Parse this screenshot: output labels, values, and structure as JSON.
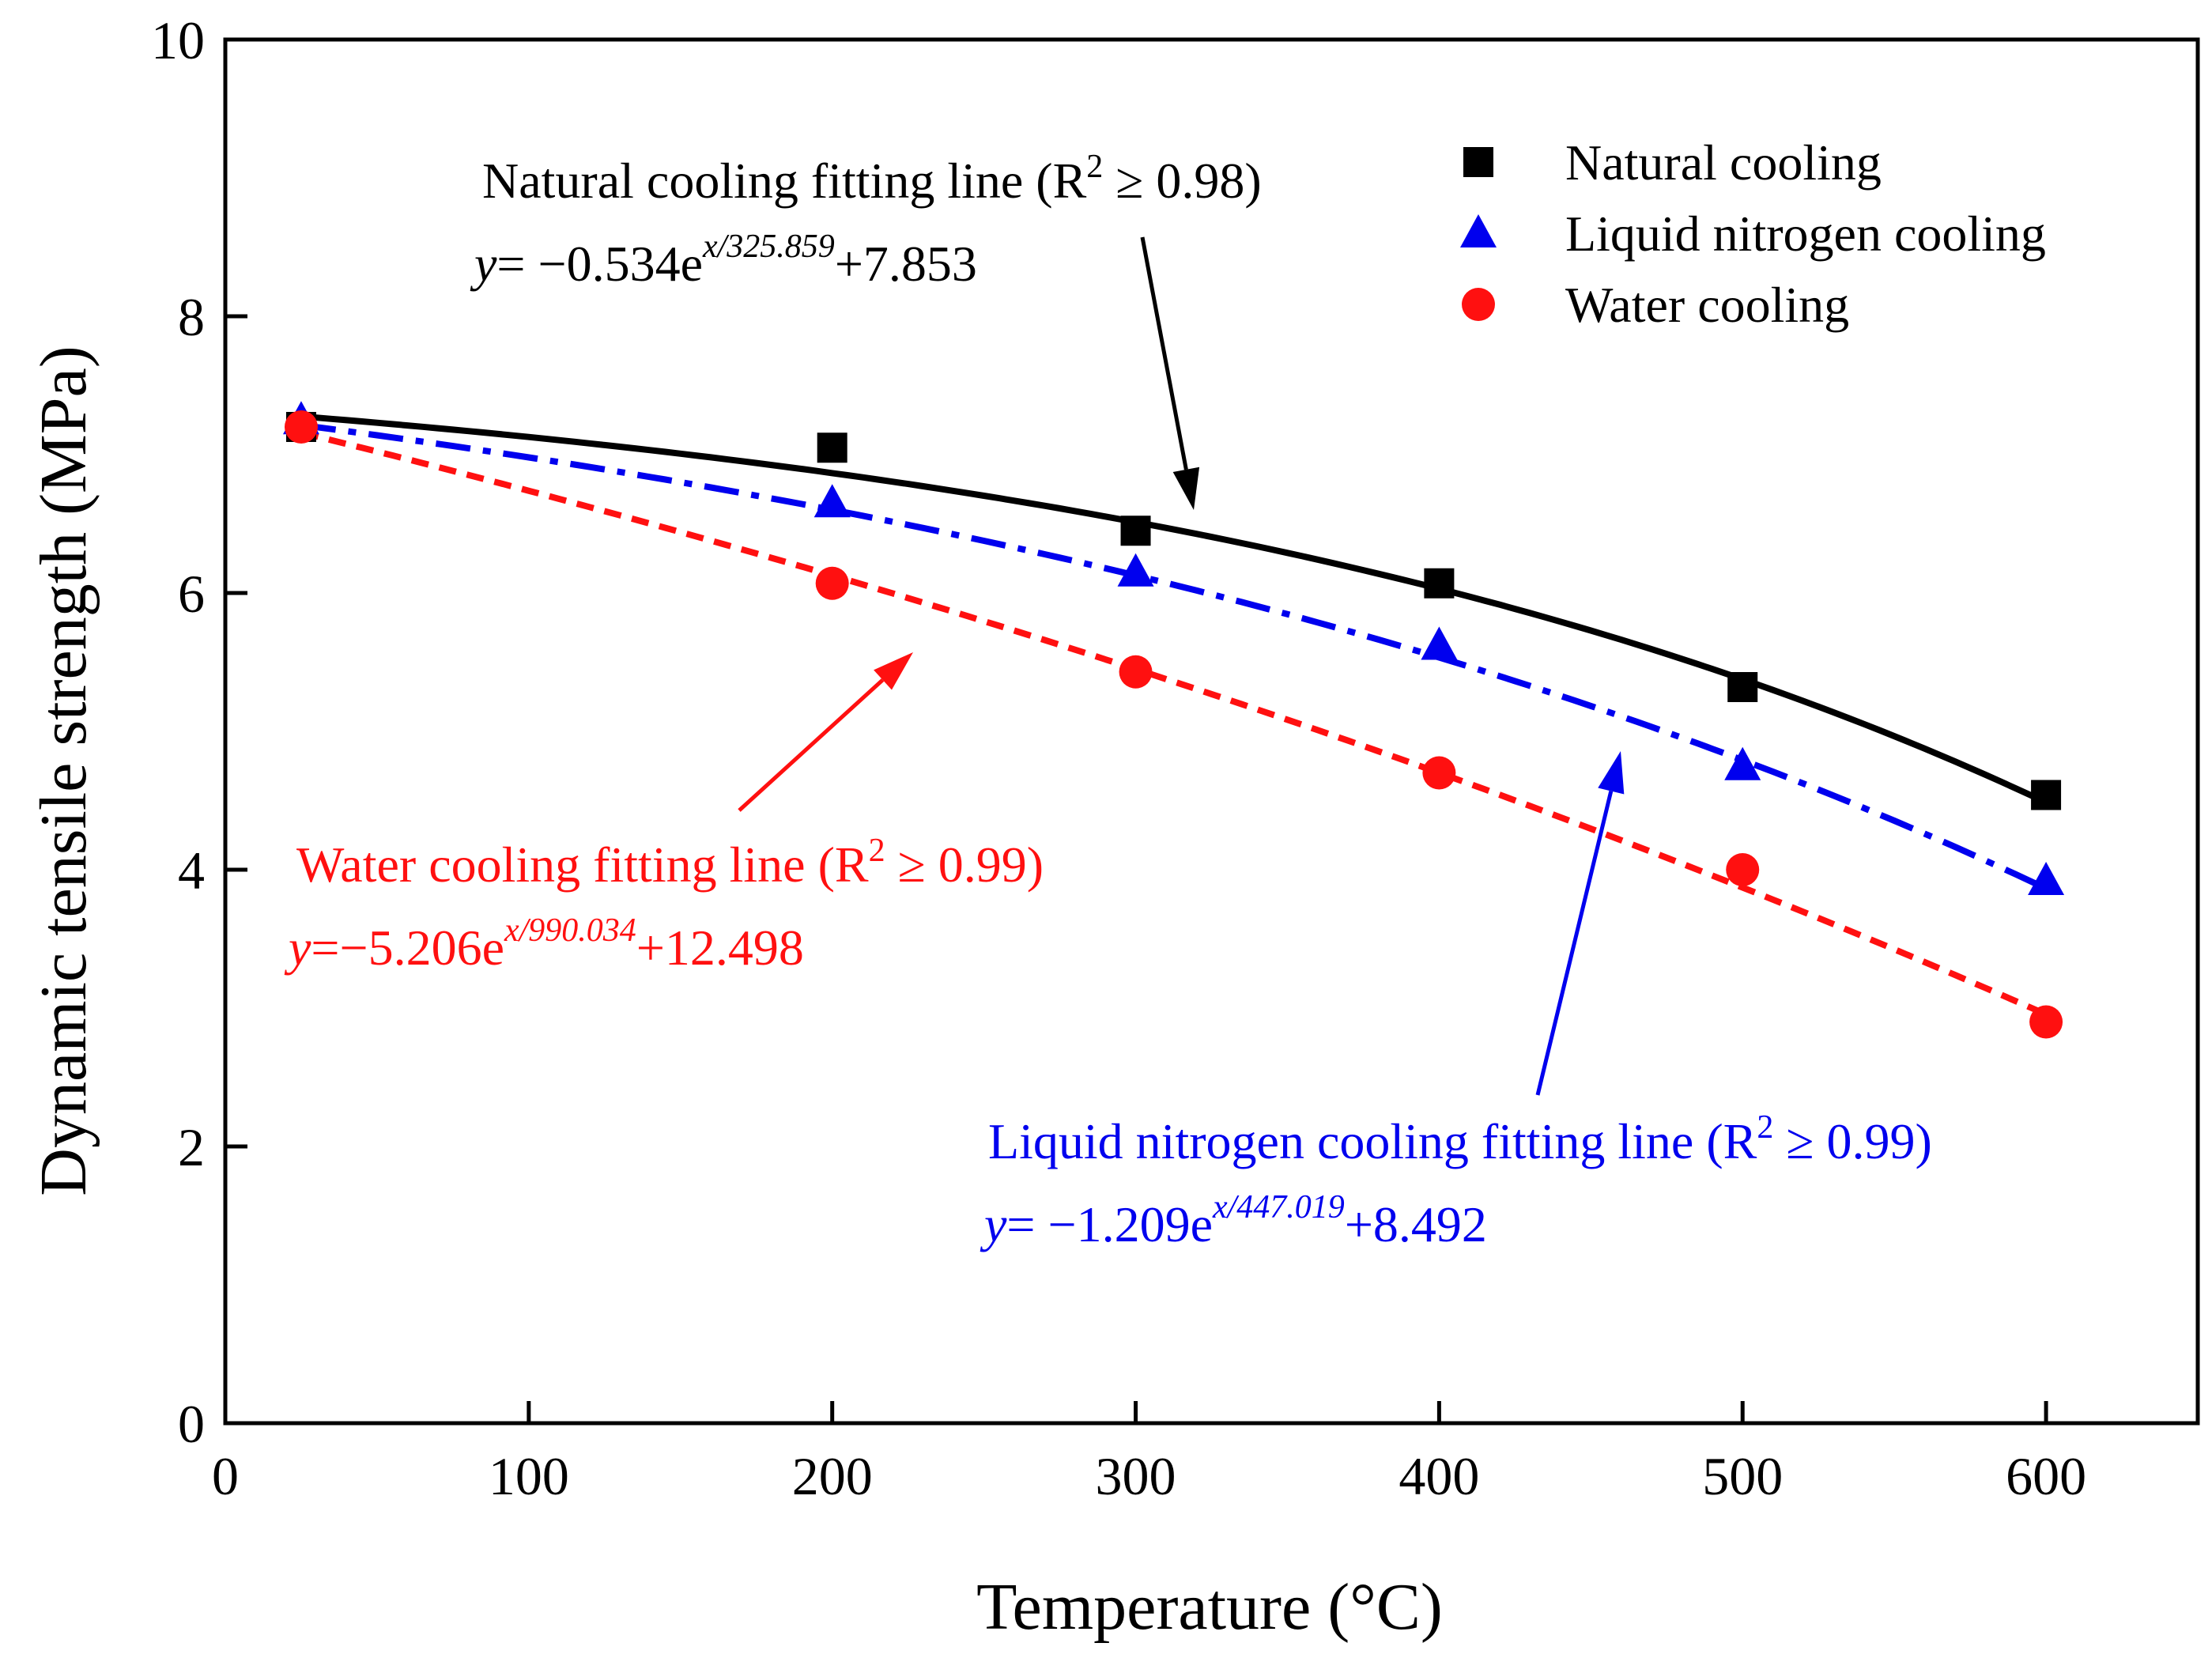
{
  "chart_data": {
    "type": "scatter",
    "xlabel": "Temperature (°C)",
    "ylabel": "Dynamic tensile strength (MPa)",
    "xlim": [
      0,
      650
    ],
    "ylim": [
      0,
      10
    ],
    "xticks": [
      0,
      100,
      200,
      300,
      400,
      500,
      600
    ],
    "yticks": [
      0,
      2,
      4,
      6,
      8,
      10
    ],
    "legend_position": "top-right",
    "series": [
      {
        "name": "Natural cooling",
        "marker": "square",
        "color": "#000000",
        "x": [
          25,
          200,
          300,
          400,
          500,
          600
        ],
        "y": [
          7.2,
          7.05,
          6.45,
          6.07,
          5.32,
          4.54
        ],
        "fit": {
          "a": -0.534,
          "b": 325.859,
          "c": 7.853,
          "style": "solid"
        },
        "annotation": {
          "title": "Natural cooling fitting line",
          "r2_prefix": "(R",
          "r2_sup": "2",
          "r2_suffix": " ≥ 0.98)",
          "eq_y": "y",
          "eq_main": "= −0.534e",
          "eq_sup": "x/325.859",
          "eq_tail": "+7.853"
        }
      },
      {
        "name": "Liquid nitrogen cooling",
        "marker": "triangle",
        "color": "#0000ee",
        "x": [
          25,
          200,
          300,
          400,
          500,
          600
        ],
        "y": [
          7.25,
          6.65,
          6.15,
          5.62,
          4.75,
          3.92
        ],
        "fit": {
          "a": -1.209,
          "b": 447.019,
          "c": 8.492,
          "style": "dashdot"
        },
        "annotation": {
          "title": "Liquid nitrogen  cooling fitting line",
          "r2_prefix": "(R",
          "r2_sup": "2",
          "r2_suffix": " ≥ 0.99)",
          "eq_y": "y",
          "eq_main": "= −1.209e",
          "eq_sup": "x/447.019",
          "eq_tail": "+8.492"
        }
      },
      {
        "name": "Water cooling",
        "marker": "circle",
        "color": "#ff1010",
        "x": [
          25,
          200,
          300,
          400,
          500,
          600
        ],
        "y": [
          7.2,
          6.07,
          5.43,
          4.7,
          4.0,
          2.9
        ],
        "fit": {
          "a": -5.206,
          "b": 990.034,
          "c": 12.498,
          "style": "dashed"
        },
        "annotation": {
          "title": "Water cooling fitting line",
          "r2_prefix": "(R",
          "r2_sup": "2",
          "r2_suffix": " ≥ 0.99)",
          "eq_y": "y",
          "eq_main": "=−5.206e",
          "eq_sup": "x/990.034",
          "eq_tail": "+12.498"
        }
      }
    ]
  }
}
